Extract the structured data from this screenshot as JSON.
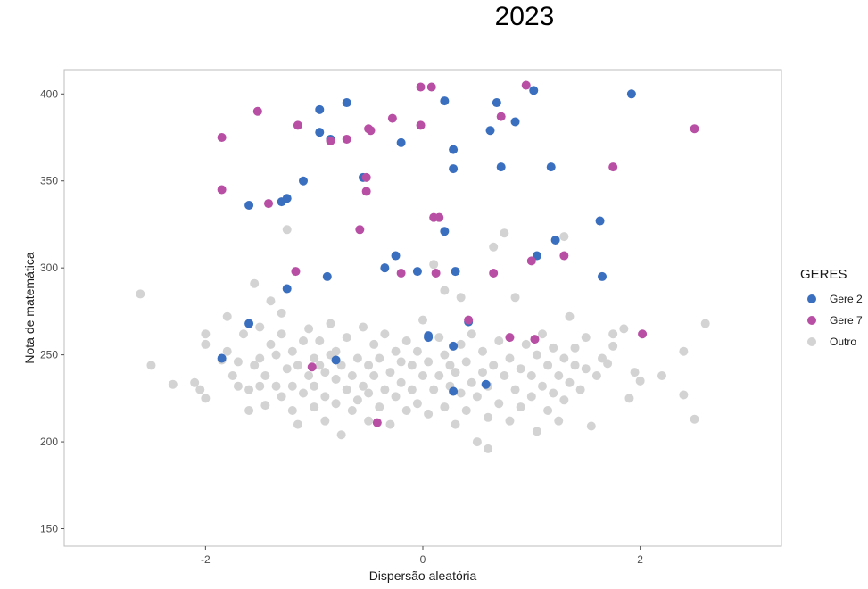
{
  "chart_data": {
    "type": "scatter",
    "title": "2023",
    "xlabel": "Dispersão aleatória",
    "ylabel": "Nota de matemática",
    "xlim": [
      -3.3,
      3.3
    ],
    "ylim": [
      140,
      414
    ],
    "x_ticks": [
      -2,
      0,
      2
    ],
    "y_ticks": [
      150,
      200,
      250,
      300,
      350,
      400
    ],
    "grid": false,
    "legend": {
      "title": "GERES",
      "position": "right"
    },
    "series": [
      {
        "name": "Outro",
        "color": "#d3d3d3",
        "points": [
          [
            -2.6,
            285
          ],
          [
            -2.5,
            244
          ],
          [
            -2.3,
            233
          ],
          [
            -2.1,
            234
          ],
          [
            -2.05,
            230
          ],
          [
            -2.0,
            225
          ],
          [
            -2.0,
            256
          ],
          [
            -2.0,
            262
          ],
          [
            -1.85,
            247
          ],
          [
            -1.8,
            252
          ],
          [
            -1.8,
            272
          ],
          [
            -1.75,
            238
          ],
          [
            -1.7,
            232
          ],
          [
            -1.7,
            246
          ],
          [
            -1.65,
            262
          ],
          [
            -1.6,
            218
          ],
          [
            -1.6,
            230
          ],
          [
            -1.55,
            244
          ],
          [
            -1.55,
            291
          ],
          [
            -1.5,
            232
          ],
          [
            -1.5,
            248
          ],
          [
            -1.5,
            266
          ],
          [
            -1.45,
            221
          ],
          [
            -1.45,
            238
          ],
          [
            -1.4,
            256
          ],
          [
            -1.4,
            281
          ],
          [
            -1.35,
            232
          ],
          [
            -1.35,
            250
          ],
          [
            -1.3,
            226
          ],
          [
            -1.3,
            262
          ],
          [
            -1.3,
            274
          ],
          [
            -1.25,
            242
          ],
          [
            -1.25,
            322
          ],
          [
            -1.2,
            218
          ],
          [
            -1.2,
            232
          ],
          [
            -1.2,
            252
          ],
          [
            -1.15,
            210
          ],
          [
            -1.15,
            244
          ],
          [
            -1.1,
            228
          ],
          [
            -1.1,
            258
          ],
          [
            -1.05,
            238
          ],
          [
            -1.05,
            265
          ],
          [
            -1.0,
            220
          ],
          [
            -1.0,
            232
          ],
          [
            -1.0,
            248
          ],
          [
            -0.95,
            244
          ],
          [
            -0.95,
            258
          ],
          [
            -0.9,
            212
          ],
          [
            -0.9,
            226
          ],
          [
            -0.9,
            240
          ],
          [
            -0.85,
            250
          ],
          [
            -0.85,
            268
          ],
          [
            -0.8,
            222
          ],
          [
            -0.8,
            236
          ],
          [
            -0.8,
            252
          ],
          [
            -0.75,
            204
          ],
          [
            -0.75,
            244
          ],
          [
            -0.7,
            230
          ],
          [
            -0.7,
            260
          ],
          [
            -0.65,
            218
          ],
          [
            -0.65,
            238
          ],
          [
            -0.6,
            224
          ],
          [
            -0.6,
            248
          ],
          [
            -0.55,
            232
          ],
          [
            -0.55,
            266
          ],
          [
            -0.5,
            212
          ],
          [
            -0.5,
            228
          ],
          [
            -0.5,
            244
          ],
          [
            -0.45,
            238
          ],
          [
            -0.45,
            256
          ],
          [
            -0.4,
            220
          ],
          [
            -0.4,
            248
          ],
          [
            -0.35,
            230
          ],
          [
            -0.35,
            262
          ],
          [
            -0.3,
            210
          ],
          [
            -0.3,
            240
          ],
          [
            -0.25,
            226
          ],
          [
            -0.25,
            252
          ],
          [
            -0.2,
            234
          ],
          [
            -0.2,
            246
          ],
          [
            -0.15,
            218
          ],
          [
            -0.15,
            258
          ],
          [
            -0.1,
            230
          ],
          [
            -0.1,
            244
          ],
          [
            -0.05,
            222
          ],
          [
            -0.05,
            252
          ],
          [
            0.0,
            238
          ],
          [
            0.0,
            270
          ],
          [
            0.05,
            216
          ],
          [
            0.05,
            246
          ],
          [
            0.1,
            230
          ],
          [
            0.1,
            302
          ],
          [
            0.15,
            238
          ],
          [
            0.15,
            260
          ],
          [
            0.2,
            220
          ],
          [
            0.2,
            250
          ],
          [
            0.2,
            287
          ],
          [
            0.25,
            232
          ],
          [
            0.25,
            244
          ],
          [
            0.3,
            210
          ],
          [
            0.3,
            240
          ],
          [
            0.35,
            228
          ],
          [
            0.35,
            256
          ],
          [
            0.35,
            283
          ],
          [
            0.4,
            218
          ],
          [
            0.4,
            246
          ],
          [
            0.45,
            234
          ],
          [
            0.45,
            262
          ],
          [
            0.5,
            200
          ],
          [
            0.5,
            226
          ],
          [
            0.55,
            240
          ],
          [
            0.55,
            252
          ],
          [
            0.6,
            196
          ],
          [
            0.6,
            214
          ],
          [
            0.6,
            232
          ],
          [
            0.65,
            244
          ],
          [
            0.65,
            312
          ],
          [
            0.7,
            222
          ],
          [
            0.7,
            258
          ],
          [
            0.75,
            238
          ],
          [
            0.75,
            320
          ],
          [
            0.8,
            212
          ],
          [
            0.8,
            248
          ],
          [
            0.85,
            230
          ],
          [
            0.85,
            283
          ],
          [
            0.9,
            220
          ],
          [
            0.9,
            242
          ],
          [
            0.95,
            256
          ],
          [
            1.0,
            226
          ],
          [
            1.0,
            238
          ],
          [
            1.05,
            206
          ],
          [
            1.05,
            250
          ],
          [
            1.1,
            232
          ],
          [
            1.1,
            262
          ],
          [
            1.15,
            218
          ],
          [
            1.15,
            244
          ],
          [
            1.2,
            228
          ],
          [
            1.2,
            254
          ],
          [
            1.25,
            212
          ],
          [
            1.25,
            238
          ],
          [
            1.3,
            224
          ],
          [
            1.3,
            248
          ],
          [
            1.3,
            318
          ],
          [
            1.35,
            234
          ],
          [
            1.35,
            272
          ],
          [
            1.4,
            244
          ],
          [
            1.4,
            254
          ],
          [
            1.45,
            230
          ],
          [
            1.5,
            242
          ],
          [
            1.5,
            260
          ],
          [
            1.55,
            209
          ],
          [
            1.6,
            238
          ],
          [
            1.65,
            248
          ],
          [
            1.7,
            245
          ],
          [
            1.75,
            255
          ],
          [
            1.75,
            262
          ],
          [
            1.85,
            265
          ],
          [
            1.9,
            225
          ],
          [
            1.95,
            240
          ],
          [
            2.0,
            235
          ],
          [
            2.2,
            238
          ],
          [
            2.4,
            252
          ],
          [
            2.4,
            227
          ],
          [
            2.5,
            213
          ],
          [
            2.6,
            268
          ]
        ]
      },
      {
        "name": "Gere 2",
        "color": "#3a6fbf",
        "points": [
          [
            -1.85,
            248
          ],
          [
            -1.6,
            268
          ],
          [
            -1.6,
            336
          ],
          [
            -1.3,
            338
          ],
          [
            -1.25,
            288
          ],
          [
            -1.25,
            340
          ],
          [
            -1.1,
            350
          ],
          [
            -0.95,
            378
          ],
          [
            -0.95,
            391
          ],
          [
            -0.85,
            374
          ],
          [
            -0.88,
            295
          ],
          [
            -0.8,
            247
          ],
          [
            -0.7,
            395
          ],
          [
            -0.55,
            352
          ],
          [
            -0.35,
            300
          ],
          [
            -0.25,
            307
          ],
          [
            -0.2,
            372
          ],
          [
            -0.05,
            298
          ],
          [
            0.05,
            260
          ],
          [
            0.05,
            261
          ],
          [
            0.2,
            321
          ],
          [
            0.2,
            396
          ],
          [
            0.28,
            229
          ],
          [
            0.28,
            255
          ],
          [
            0.28,
            357
          ],
          [
            0.28,
            368
          ],
          [
            0.3,
            298
          ],
          [
            0.42,
            269
          ],
          [
            0.58,
            233
          ],
          [
            0.62,
            379
          ],
          [
            0.68,
            395
          ],
          [
            0.72,
            358
          ],
          [
            0.85,
            384
          ],
          [
            1.02,
            402
          ],
          [
            1.05,
            307
          ],
          [
            1.18,
            358
          ],
          [
            1.22,
            316
          ],
          [
            1.63,
            327
          ],
          [
            1.65,
            295
          ],
          [
            1.92,
            400
          ]
        ]
      },
      {
        "name": "Gere 7",
        "color": "#b84fa5",
        "points": [
          [
            -1.85,
            345
          ],
          [
            -1.85,
            375
          ],
          [
            -1.52,
            390
          ],
          [
            -1.42,
            337
          ],
          [
            -1.17,
            298
          ],
          [
            -1.15,
            382
          ],
          [
            -1.02,
            243
          ],
          [
            -0.85,
            373
          ],
          [
            -0.7,
            374
          ],
          [
            -0.58,
            322
          ],
          [
            -0.52,
            344
          ],
          [
            -0.52,
            352
          ],
          [
            -0.5,
            380
          ],
          [
            -0.48,
            379
          ],
          [
            -0.42,
            211
          ],
          [
            -0.28,
            386
          ],
          [
            -0.2,
            297
          ],
          [
            -0.02,
            382
          ],
          [
            -0.02,
            404
          ],
          [
            0.08,
            404
          ],
          [
            0.1,
            329
          ],
          [
            0.15,
            329
          ],
          [
            0.12,
            297
          ],
          [
            0.42,
            270
          ],
          [
            0.65,
            297
          ],
          [
            0.72,
            387
          ],
          [
            0.8,
            260
          ],
          [
            0.95,
            405
          ],
          [
            1.0,
            304
          ],
          [
            1.03,
            259
          ],
          [
            1.3,
            307
          ],
          [
            1.75,
            358
          ],
          [
            2.02,
            262
          ],
          [
            2.5,
            380
          ]
        ]
      }
    ]
  }
}
